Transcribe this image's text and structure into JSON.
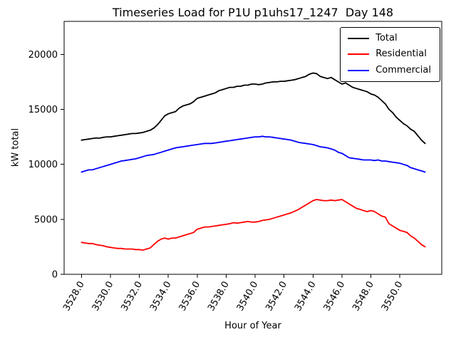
{
  "chart_data": {
    "type": "line",
    "title": "Timeseries Load for P1U p1uhs17_1247  Day 148",
    "xlabel": "Hour of Year",
    "ylabel": "kW total",
    "x_start": 3528.0,
    "x_step": 0.25,
    "xlim": [
      3526.8,
      3552.9
    ],
    "ylim": [
      0,
      23000
    ],
    "xticks": [
      3528,
      3530,
      3532,
      3534,
      3536,
      3538,
      3540,
      3542,
      3544,
      3546,
      3548,
      3550
    ],
    "xtick_decimals": 1,
    "yticks": [
      0,
      5000,
      10000,
      15000,
      20000
    ],
    "grid": false,
    "legend_position": "upper right",
    "series": [
      {
        "name": "Total",
        "color": "#000000",
        "values": [
          12200,
          12250,
          12300,
          12350,
          12400,
          12380,
          12450,
          12500,
          12500,
          12550,
          12600,
          12650,
          12700,
          12750,
          12800,
          12800,
          12850,
          12900,
          13000,
          13100,
          13300,
          13600,
          14000,
          14400,
          14600,
          14700,
          14800,
          15100,
          15300,
          15400,
          15500,
          15700,
          16000,
          16100,
          16200,
          16300,
          16400,
          16500,
          16700,
          16800,
          16900,
          17000,
          17000,
          17100,
          17100,
          17200,
          17200,
          17300,
          17300,
          17250,
          17300,
          17400,
          17450,
          17500,
          17500,
          17550,
          17550,
          17600,
          17650,
          17700,
          17800,
          17900,
          18000,
          18200,
          18300,
          18250,
          18000,
          17900,
          17800,
          17900,
          17700,
          17500,
          17300,
          17400,
          17200,
          17000,
          16900,
          16800,
          16700,
          16600,
          16400,
          16300,
          16100,
          15800,
          15500,
          15000,
          14700,
          14300,
          14000,
          13700,
          13500,
          13200,
          13000,
          12600,
          12200,
          11900
        ]
      },
      {
        "name": "Residential",
        "color": "#ff0000",
        "values": [
          2900,
          2850,
          2800,
          2800,
          2700,
          2650,
          2600,
          2500,
          2450,
          2400,
          2350,
          2350,
          2300,
          2300,
          2300,
          2250,
          2250,
          2200,
          2300,
          2400,
          2700,
          3000,
          3200,
          3300,
          3200,
          3300,
          3300,
          3400,
          3500,
          3600,
          3700,
          3800,
          4100,
          4200,
          4300,
          4300,
          4350,
          4400,
          4450,
          4500,
          4550,
          4600,
          4700,
          4650,
          4700,
          4750,
          4800,
          4750,
          4750,
          4800,
          4900,
          4950,
          5000,
          5100,
          5200,
          5300,
          5400,
          5500,
          5600,
          5750,
          5900,
          6100,
          6300,
          6500,
          6700,
          6800,
          6750,
          6700,
          6700,
          6750,
          6700,
          6750,
          6800,
          6600,
          6400,
          6200,
          6000,
          5900,
          5800,
          5700,
          5800,
          5700,
          5500,
          5300,
          5200,
          4600,
          4400,
          4200,
          4000,
          3900,
          3800,
          3500,
          3300,
          3000,
          2700,
          2500
        ]
      },
      {
        "name": "Commercial",
        "color": "#0000ff",
        "values": [
          9300,
          9400,
          9500,
          9500,
          9600,
          9700,
          9800,
          9900,
          10000,
          10100,
          10200,
          10300,
          10350,
          10400,
          10450,
          10500,
          10600,
          10700,
          10800,
          10850,
          10900,
          11000,
          11100,
          11200,
          11300,
          11400,
          11500,
          11550,
          11600,
          11650,
          11700,
          11750,
          11800,
          11850,
          11900,
          11900,
          11900,
          11950,
          12000,
          12050,
          12100,
          12150,
          12200,
          12250,
          12300,
          12350,
          12400,
          12450,
          12500,
          12500,
          12550,
          12500,
          12500,
          12450,
          12400,
          12350,
          12300,
          12250,
          12200,
          12100,
          12000,
          11950,
          11900,
          11850,
          11800,
          11700,
          11600,
          11550,
          11500,
          11400,
          11300,
          11100,
          11000,
          10800,
          10600,
          10550,
          10500,
          10450,
          10400,
          10400,
          10400,
          10350,
          10400,
          10300,
          10300,
          10250,
          10200,
          10150,
          10100,
          10000,
          9900,
          9700,
          9600,
          9500,
          9400,
          9300
        ]
      }
    ]
  }
}
